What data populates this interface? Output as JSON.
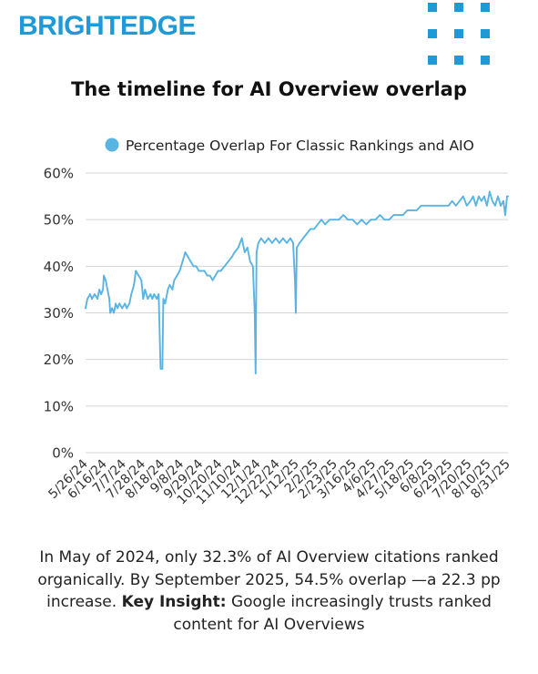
{
  "brand": {
    "name": "BRIGHTEDGE",
    "color": "#1f9ad6"
  },
  "title": "The timeline for AI Overview overlap",
  "chart_data": {
    "type": "line",
    "title": "The timeline for AI Overview overlap",
    "legend": {
      "position": "top",
      "marker": "circle"
    },
    "series": [
      {
        "name": "Percentage Overlap For Classic Rankings and AIO",
        "color": "#5ab4e2",
        "points": [
          [
            "2024-05-26",
            31
          ],
          [
            "2024-05-28",
            33
          ],
          [
            "2024-05-31",
            34
          ],
          [
            "2024-06-02",
            33
          ],
          [
            "2024-06-05",
            34
          ],
          [
            "2024-06-08",
            33
          ],
          [
            "2024-06-10",
            35
          ],
          [
            "2024-06-12",
            34
          ],
          [
            "2024-06-14",
            35
          ],
          [
            "2024-06-15",
            38
          ],
          [
            "2024-06-17",
            37
          ],
          [
            "2024-06-19",
            35
          ],
          [
            "2024-06-21",
            33
          ],
          [
            "2024-06-22",
            30
          ],
          [
            "2024-06-24",
            31
          ],
          [
            "2024-06-26",
            30
          ],
          [
            "2024-06-28",
            32
          ],
          [
            "2024-06-30",
            31
          ],
          [
            "2024-07-02",
            32
          ],
          [
            "2024-07-05",
            31
          ],
          [
            "2024-07-08",
            32
          ],
          [
            "2024-07-10",
            31
          ],
          [
            "2024-07-13",
            32
          ],
          [
            "2024-07-15",
            34
          ],
          [
            "2024-07-18",
            36
          ],
          [
            "2024-07-20",
            39
          ],
          [
            "2024-07-23",
            38
          ],
          [
            "2024-07-26",
            37
          ],
          [
            "2024-07-28",
            33
          ],
          [
            "2024-07-30",
            35
          ],
          [
            "2024-08-02",
            33
          ],
          [
            "2024-08-05",
            34
          ],
          [
            "2024-08-07",
            33
          ],
          [
            "2024-08-09",
            34
          ],
          [
            "2024-08-12",
            33
          ],
          [
            "2024-08-14",
            34
          ],
          [
            "2024-08-16",
            18
          ],
          [
            "2024-08-18",
            18
          ],
          [
            "2024-08-19",
            33
          ],
          [
            "2024-08-21",
            32
          ],
          [
            "2024-08-24",
            35
          ],
          [
            "2024-08-26",
            36
          ],
          [
            "2024-08-29",
            35
          ],
          [
            "2024-08-31",
            37
          ],
          [
            "2024-09-03",
            38
          ],
          [
            "2024-09-06",
            39
          ],
          [
            "2024-09-09",
            41
          ],
          [
            "2024-09-12",
            43
          ],
          [
            "2024-09-15",
            42
          ],
          [
            "2024-09-18",
            41
          ],
          [
            "2024-09-21",
            40
          ],
          [
            "2024-09-24",
            40
          ],
          [
            "2024-09-27",
            39
          ],
          [
            "2024-09-30",
            39
          ],
          [
            "2024-10-03",
            39
          ],
          [
            "2024-10-06",
            38
          ],
          [
            "2024-10-09",
            38
          ],
          [
            "2024-10-12",
            37
          ],
          [
            "2024-10-15",
            38
          ],
          [
            "2024-10-18",
            39
          ],
          [
            "2024-10-21",
            39
          ],
          [
            "2024-10-25",
            40
          ],
          [
            "2024-10-29",
            41
          ],
          [
            "2024-11-02",
            42
          ],
          [
            "2024-11-05",
            43
          ],
          [
            "2024-11-09",
            44
          ],
          [
            "2024-11-13",
            46
          ],
          [
            "2024-11-16",
            43
          ],
          [
            "2024-11-19",
            44
          ],
          [
            "2024-11-22",
            41
          ],
          [
            "2024-11-25",
            40
          ],
          [
            "2024-11-27",
            30
          ],
          [
            "2024-11-28",
            17
          ],
          [
            "2024-11-29",
            43
          ],
          [
            "2024-12-01",
            45
          ],
          [
            "2024-12-04",
            46
          ],
          [
            "2024-12-08",
            45
          ],
          [
            "2024-12-12",
            46
          ],
          [
            "2024-12-16",
            45
          ],
          [
            "2024-12-20",
            46
          ],
          [
            "2024-12-24",
            45
          ],
          [
            "2024-12-28",
            46
          ],
          [
            "2025-01-01",
            45
          ],
          [
            "2025-01-05",
            46
          ],
          [
            "2025-01-08",
            45
          ],
          [
            "2025-01-10",
            37
          ],
          [
            "2025-01-11",
            30
          ],
          [
            "2025-01-12",
            44
          ],
          [
            "2025-01-15",
            45
          ],
          [
            "2025-01-19",
            46
          ],
          [
            "2025-01-23",
            47
          ],
          [
            "2025-01-27",
            48
          ],
          [
            "2025-01-31",
            48
          ],
          [
            "2025-02-04",
            49
          ],
          [
            "2025-02-08",
            50
          ],
          [
            "2025-02-12",
            49
          ],
          [
            "2025-02-17",
            50
          ],
          [
            "2025-02-22",
            50
          ],
          [
            "2025-02-27",
            50
          ],
          [
            "2025-03-04",
            51
          ],
          [
            "2025-03-09",
            50
          ],
          [
            "2025-03-14",
            50
          ],
          [
            "2025-03-19",
            49
          ],
          [
            "2025-03-24",
            50
          ],
          [
            "2025-03-29",
            49
          ],
          [
            "2025-04-03",
            50
          ],
          [
            "2025-04-08",
            50
          ],
          [
            "2025-04-13",
            51
          ],
          [
            "2025-04-18",
            50
          ],
          [
            "2025-04-23",
            50
          ],
          [
            "2025-04-28",
            51
          ],
          [
            "2025-05-03",
            51
          ],
          [
            "2025-05-08",
            51
          ],
          [
            "2025-05-13",
            52
          ],
          [
            "2025-05-18",
            52
          ],
          [
            "2025-05-23",
            52
          ],
          [
            "2025-05-28",
            53
          ],
          [
            "2025-06-02",
            53
          ],
          [
            "2025-06-07",
            53
          ],
          [
            "2025-06-12",
            53
          ],
          [
            "2025-06-17",
            53
          ],
          [
            "2025-06-22",
            53
          ],
          [
            "2025-06-27",
            53
          ],
          [
            "2025-07-01",
            54
          ],
          [
            "2025-07-05",
            53
          ],
          [
            "2025-07-09",
            54
          ],
          [
            "2025-07-13",
            55
          ],
          [
            "2025-07-17",
            53
          ],
          [
            "2025-07-21",
            54
          ],
          [
            "2025-07-24",
            55
          ],
          [
            "2025-07-27",
            53
          ],
          [
            "2025-07-30",
            55
          ],
          [
            "2025-08-02",
            54
          ],
          [
            "2025-08-05",
            55
          ],
          [
            "2025-08-08",
            53
          ],
          [
            "2025-08-11",
            56
          ],
          [
            "2025-08-14",
            54
          ],
          [
            "2025-08-17",
            53
          ],
          [
            "2025-08-20",
            55
          ],
          [
            "2025-08-23",
            53
          ],
          [
            "2025-08-26",
            54
          ],
          [
            "2025-08-28",
            51
          ],
          [
            "2025-08-30",
            55
          ],
          [
            "2025-08-31",
            55
          ]
        ]
      }
    ],
    "xlabel": "",
    "ylabel": "",
    "xlim": [
      "2024-05-26",
      "2025-08-31"
    ],
    "ylim": [
      0,
      60
    ],
    "y_ticks": [
      0,
      10,
      20,
      30,
      40,
      50,
      60
    ],
    "y_tick_labels": [
      "0%",
      "10%",
      "20%",
      "30%",
      "40%",
      "50%",
      "60%"
    ],
    "x_tick_labels": [
      [
        "2024-05-26",
        "5/26/24"
      ],
      [
        "2024-06-16",
        "6/16/24"
      ],
      [
        "2024-07-07",
        "7/7/24"
      ],
      [
        "2024-07-28",
        "7/28/24"
      ],
      [
        "2024-08-18",
        "8/18/24"
      ],
      [
        "2024-09-08",
        "9/8/24"
      ],
      [
        "2024-09-29",
        "9/29/24"
      ],
      [
        "2024-10-20",
        "10/20/24"
      ],
      [
        "2024-11-10",
        "11/10/24"
      ],
      [
        "2024-12-01",
        "12/1/24"
      ],
      [
        "2024-12-22",
        "12/22/24"
      ],
      [
        "2025-01-12",
        "1/12/25"
      ],
      [
        "2025-02-02",
        "2/2/25"
      ],
      [
        "2025-02-23",
        "2/23/25"
      ],
      [
        "2025-03-16",
        "3/16/25"
      ],
      [
        "2025-04-06",
        "4/6/25"
      ],
      [
        "2025-04-27",
        "4/27/25"
      ],
      [
        "2025-05-18",
        "5/18/25"
      ],
      [
        "2025-06-08",
        "6/8/25"
      ],
      [
        "2025-06-29",
        "6/29/25"
      ],
      [
        "2025-07-20",
        "7/20/25"
      ],
      [
        "2025-08-10",
        "8/10/25"
      ],
      [
        "2025-08-31",
        "8/31/25"
      ]
    ],
    "grid": {
      "horizontal": true,
      "vertical": false,
      "color": "#d4d4d4"
    }
  },
  "caption": {
    "text1": "In May of 2024, only 32.3% of AI Overview citations ranked organically. By September 2025, 54.5% overlap —a 22.3 pp increase.  ",
    "bold": "Key Insight:",
    "text2": " Google increasingly trusts ranked content for AI Overviews"
  }
}
